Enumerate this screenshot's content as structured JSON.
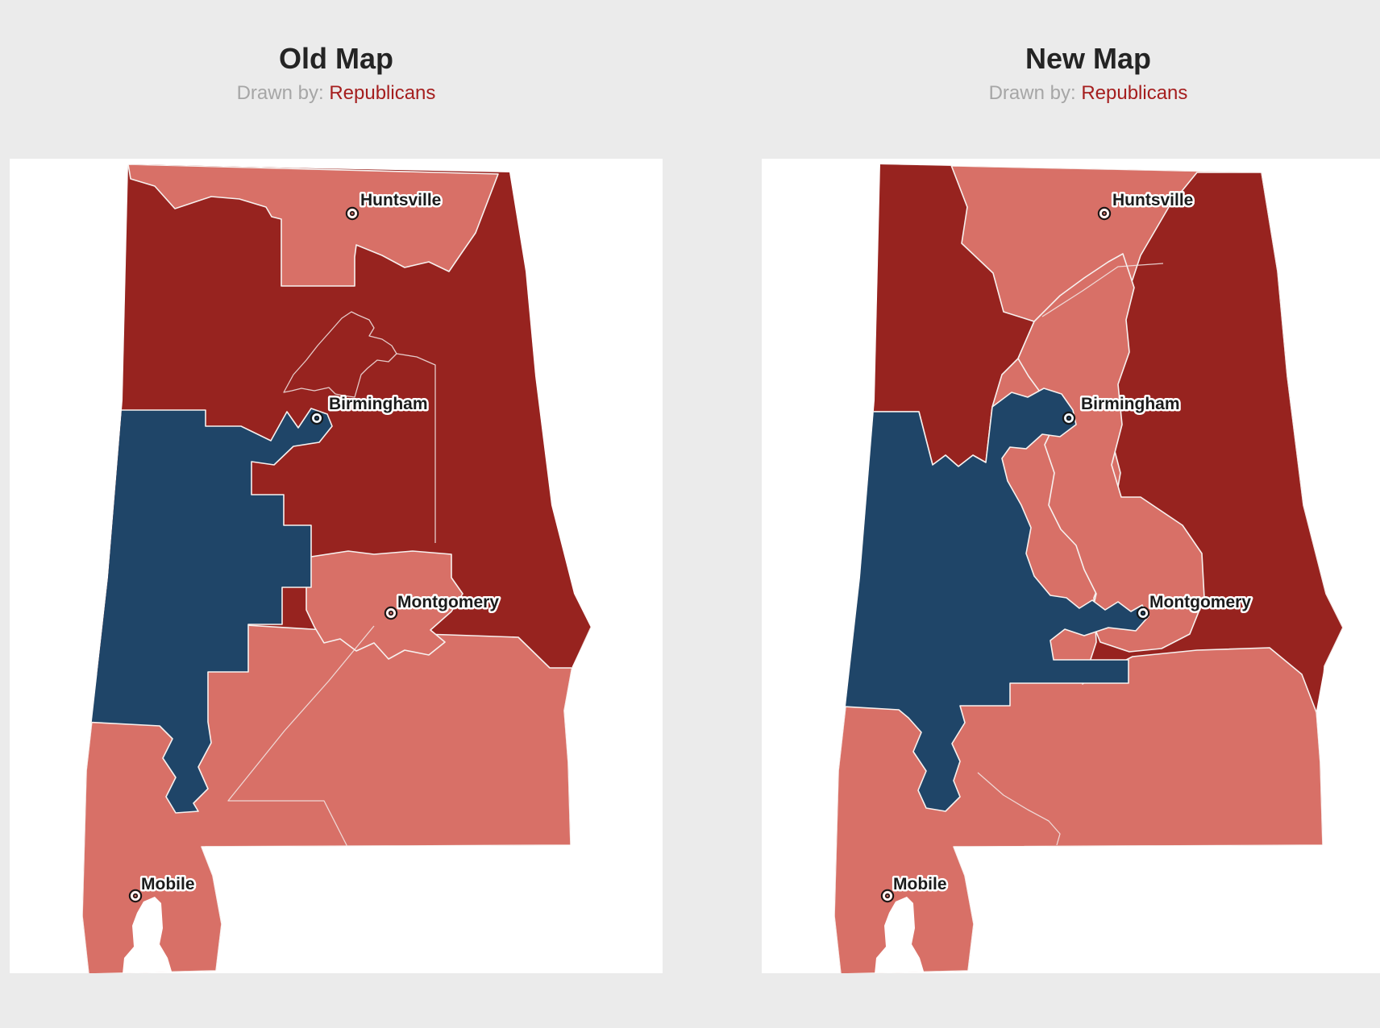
{
  "page": {
    "background": "#ebebeb",
    "panel_background": "#ffffff"
  },
  "colors": {
    "republican_dark": "#97231f",
    "republican_light": "#d87067",
    "democrat_blue": "#1f4568",
    "district_border": "#f7f1ef",
    "inner_line": "#f3e9e7",
    "city_label": "#1b1b1b",
    "marker_ring": "#161616",
    "title": "#242424",
    "subtitle_gray": "#a6a6a6",
    "subtitle_red": "#a51e1e"
  },
  "maps": [
    {
      "id": "old",
      "title": "Old Map",
      "subtitle_prefix": "Drawn by:",
      "subtitle_party": "Republicans",
      "cities": [
        {
          "name": "Huntsville"
        },
        {
          "name": "Birmingham"
        },
        {
          "name": "Montgomery"
        },
        {
          "name": "Mobile"
        }
      ]
    },
    {
      "id": "new",
      "title": "New Map",
      "subtitle_prefix": "Drawn by:",
      "subtitle_party": "Republicans",
      "cities": [
        {
          "name": "Huntsville"
        },
        {
          "name": "Birmingham"
        },
        {
          "name": "Montgomery"
        },
        {
          "name": "Mobile"
        }
      ]
    }
  ]
}
